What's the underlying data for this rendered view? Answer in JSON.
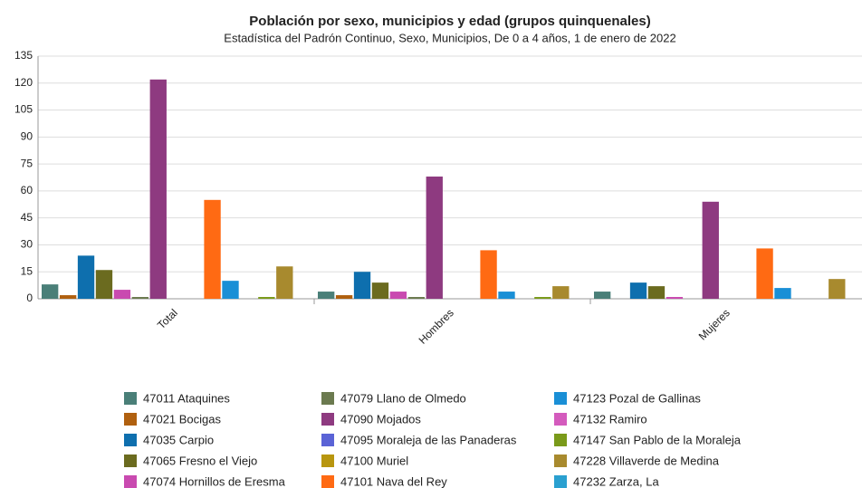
{
  "chart_data": {
    "type": "bar",
    "title": "Población por sexo, municipios y edad (grupos quinquenales)",
    "subtitle": "Estadística del Padrón Continuo, Sexo, Municipios, De 0 a 4 años, 1 de enero de 2022",
    "categories": [
      "Total",
      "Hombres",
      "Mujeres"
    ],
    "series": [
      {
        "name": "47011 Ataquines",
        "color": "#4a7f78",
        "values": [
          8,
          4,
          4
        ]
      },
      {
        "name": "47021 Bocigas",
        "color": "#b0600f",
        "values": [
          2,
          2,
          0
        ]
      },
      {
        "name": "47035 Carpio",
        "color": "#0e6fae",
        "values": [
          24,
          15,
          9
        ]
      },
      {
        "name": "47065 Fresno el Viejo",
        "color": "#6b6b1f",
        "values": [
          16,
          9,
          7
        ]
      },
      {
        "name": "47074 Hornillos de Eresma",
        "color": "#c94ab0",
        "values": [
          5,
          4,
          1
        ]
      },
      {
        "name": "47079 Llano de Olmedo",
        "color": "#6b7a4f",
        "values": [
          1,
          1,
          0
        ]
      },
      {
        "name": "47090 Mojados",
        "color": "#8e3a80",
        "values": [
          122,
          68,
          54
        ]
      },
      {
        "name": "47095 Moraleja de las Panaderas",
        "color": "#5a63d6",
        "values": [
          0,
          0,
          0
        ]
      },
      {
        "name": "47100 Muriel",
        "color": "#b8960f",
        "values": [
          0,
          0,
          0
        ]
      },
      {
        "name": "47101 Nava del Rey",
        "color": "#ff6a13",
        "values": [
          55,
          27,
          28
        ]
      },
      {
        "name": "47123 Pozal de Gallinas",
        "color": "#1a8fd6",
        "values": [
          10,
          4,
          6
        ]
      },
      {
        "name": "47132 Ramiro",
        "color": "#d45bbd",
        "values": [
          0,
          0,
          0
        ]
      },
      {
        "name": "47147 San Pablo de la Moraleja",
        "color": "#7a9a1a",
        "values": [
          1,
          1,
          0
        ]
      },
      {
        "name": "47228 Villaverde de Medina",
        "color": "#a88a2e",
        "values": [
          18,
          7,
          11
        ]
      },
      {
        "name": "47232 Zarza, La",
        "color": "#2aa0d0",
        "values": [
          0,
          0,
          0
        ]
      }
    ],
    "ylim": [
      0,
      135
    ],
    "yticks": [
      0,
      15,
      30,
      45,
      60,
      75,
      90,
      105,
      120,
      135
    ],
    "grid": true
  }
}
